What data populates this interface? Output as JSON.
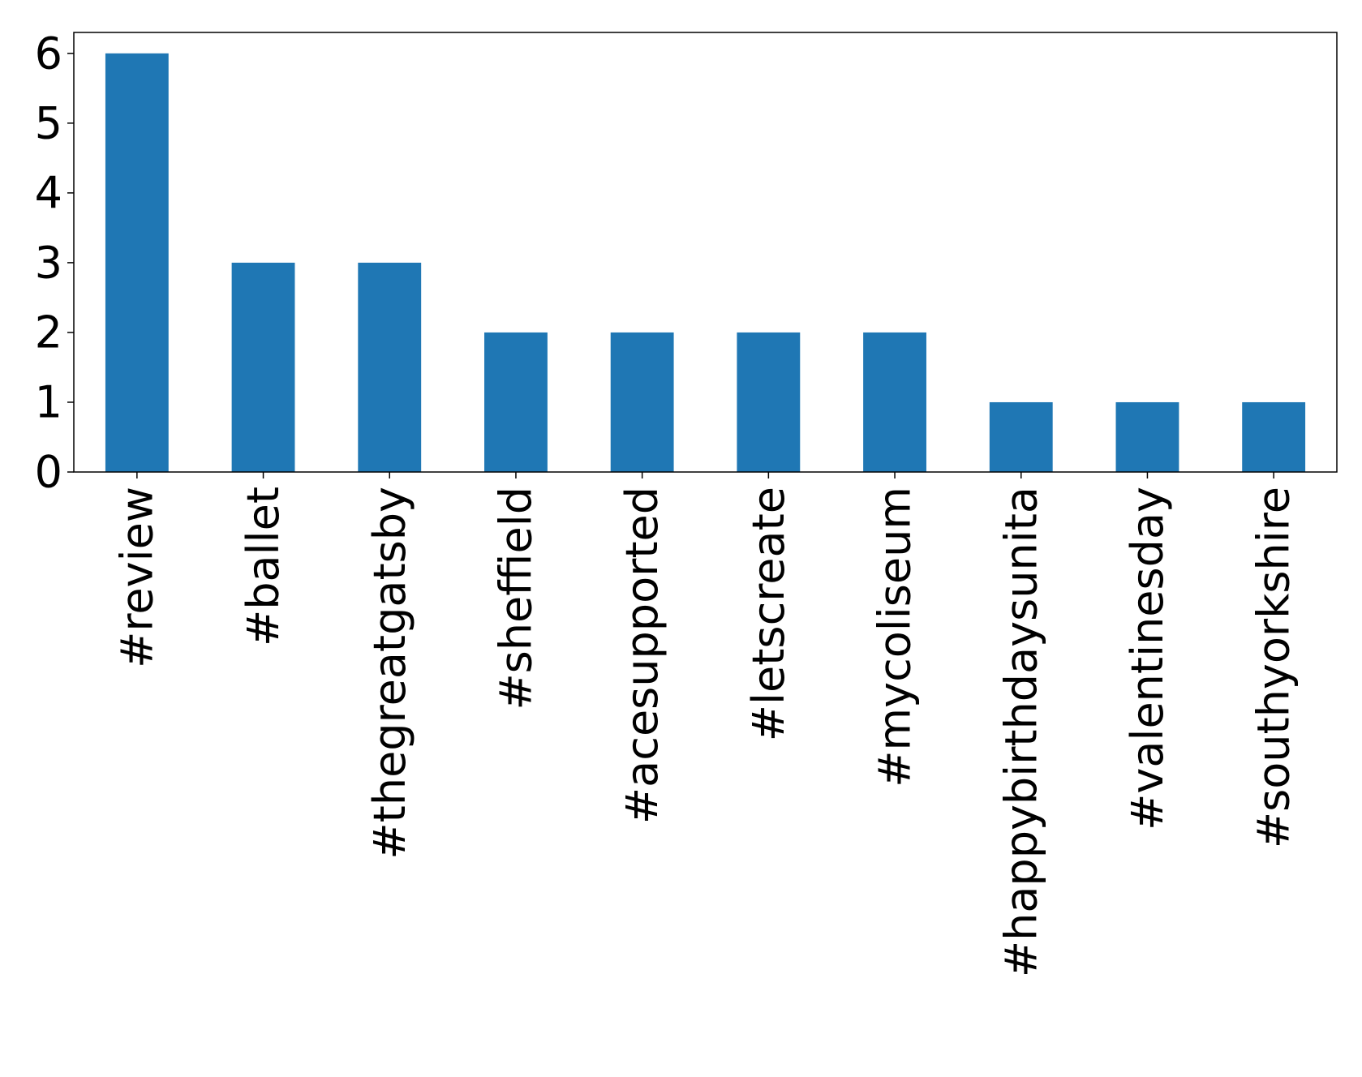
{
  "chart_data": {
    "type": "bar",
    "categories": [
      "#review",
      "#ballet",
      "#thegreatgatsby",
      "#sheffield",
      "#acesupported",
      "#letscreate",
      "#mycoliseum",
      "#happybirthdaysunita",
      "#valentinesday",
      "#southyorkshire"
    ],
    "values": [
      6,
      3,
      3,
      2,
      2,
      2,
      2,
      1,
      1,
      1
    ],
    "color": "#1f77b4",
    "ylim": [
      0,
      6.3
    ],
    "yticks": [
      0,
      1,
      2,
      3,
      4,
      5,
      6
    ],
    "grid": false
  }
}
